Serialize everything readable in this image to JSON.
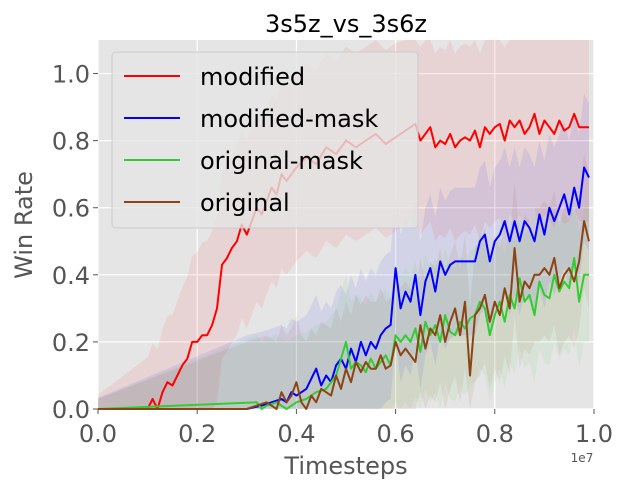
{
  "chart_data": {
    "type": "line",
    "title": "3s5z_vs_3s6z",
    "xlabel": "Timesteps",
    "ylabel": "Win Rate",
    "x_offset_text": "1e7",
    "xlim": [
      0,
      1.0
    ],
    "ylim": [
      0,
      1.1
    ],
    "xticks": [
      "0.0",
      "0.2",
      "0.4",
      "0.6",
      "0.8",
      "1.0"
    ],
    "yticks": [
      "0.0",
      "0.2",
      "0.4",
      "0.6",
      "0.8",
      "1.0"
    ],
    "grid": true,
    "legend_position": "upper-left",
    "series": [
      {
        "name": "modified",
        "color": "#ff0000",
        "x": [
          0.0,
          0.1,
          0.11,
          0.12,
          0.13,
          0.14,
          0.15,
          0.16,
          0.17,
          0.18,
          0.19,
          0.2,
          0.21,
          0.22,
          0.23,
          0.24,
          0.25,
          0.26,
          0.27,
          0.28,
          0.29,
          0.3,
          0.31,
          0.32,
          0.33,
          0.34,
          0.35,
          0.36,
          0.37,
          0.38,
          0.4,
          0.42,
          0.44,
          0.46,
          0.48,
          0.5,
          0.52,
          0.54,
          0.56,
          0.58,
          0.6,
          0.62,
          0.64,
          0.65,
          0.66,
          0.67,
          0.68,
          0.69,
          0.7,
          0.71,
          0.72,
          0.73,
          0.74,
          0.75,
          0.76,
          0.77,
          0.78,
          0.79,
          0.8,
          0.81,
          0.82,
          0.83,
          0.84,
          0.85,
          0.86,
          0.87,
          0.88,
          0.89,
          0.9,
          0.91,
          0.92,
          0.93,
          0.94,
          0.95,
          0.96,
          0.97,
          0.98,
          0.99
        ],
        "y": [
          0.0,
          0.0,
          0.03,
          0.0,
          0.05,
          0.08,
          0.07,
          0.1,
          0.13,
          0.15,
          0.2,
          0.2,
          0.22,
          0.22,
          0.25,
          0.3,
          0.43,
          0.45,
          0.48,
          0.5,
          0.55,
          0.52,
          0.56,
          0.6,
          0.58,
          0.62,
          0.66,
          0.64,
          0.7,
          0.68,
          0.72,
          0.75,
          0.73,
          0.78,
          0.76,
          0.8,
          0.78,
          0.8,
          0.82,
          0.79,
          0.81,
          0.83,
          0.85,
          0.8,
          0.82,
          0.84,
          0.78,
          0.8,
          0.79,
          0.82,
          0.78,
          0.8,
          0.81,
          0.8,
          0.83,
          0.78,
          0.84,
          0.82,
          0.84,
          0.85,
          0.8,
          0.86,
          0.84,
          0.86,
          0.82,
          0.84,
          0.88,
          0.82,
          0.86,
          0.84,
          0.82,
          0.86,
          0.83,
          0.84,
          0.88,
          0.84,
          0.84,
          0.84
        ]
      },
      {
        "name": "modified-mask",
        "color": "#0000ff",
        "x": [
          0.0,
          0.3,
          0.33,
          0.35,
          0.37,
          0.38,
          0.39,
          0.4,
          0.42,
          0.44,
          0.45,
          0.46,
          0.47,
          0.48,
          0.49,
          0.5,
          0.51,
          0.52,
          0.53,
          0.54,
          0.55,
          0.56,
          0.57,
          0.58,
          0.59,
          0.6,
          0.61,
          0.62,
          0.63,
          0.64,
          0.65,
          0.66,
          0.67,
          0.68,
          0.69,
          0.7,
          0.71,
          0.72,
          0.73,
          0.74,
          0.75,
          0.76,
          0.77,
          0.78,
          0.79,
          0.8,
          0.81,
          0.82,
          0.83,
          0.84,
          0.85,
          0.86,
          0.87,
          0.88,
          0.89,
          0.9,
          0.91,
          0.92,
          0.93,
          0.94,
          0.95,
          0.96,
          0.97,
          0.98,
          0.99
        ],
        "y": [
          0.0,
          0.0,
          0.01,
          0.02,
          0.03,
          0.02,
          0.05,
          0.04,
          0.06,
          0.12,
          0.07,
          0.1,
          0.08,
          0.13,
          0.15,
          0.12,
          0.18,
          0.14,
          0.2,
          0.16,
          0.2,
          0.18,
          0.22,
          0.24,
          0.25,
          0.42,
          0.3,
          0.35,
          0.32,
          0.4,
          0.28,
          0.38,
          0.42,
          0.35,
          0.44,
          0.4,
          0.43,
          0.44,
          0.44,
          0.44,
          0.44,
          0.44,
          0.5,
          0.52,
          0.44,
          0.5,
          0.52,
          0.56,
          0.5,
          0.56,
          0.5,
          0.56,
          0.54,
          0.5,
          0.58,
          0.52,
          0.6,
          0.56,
          0.6,
          0.64,
          0.58,
          0.66,
          0.6,
          0.72,
          0.69
        ]
      },
      {
        "name": "original-mask",
        "color": "#32cd32",
        "x": [
          0.0,
          0.32,
          0.33,
          0.34,
          0.36,
          0.38,
          0.4,
          0.42,
          0.44,
          0.46,
          0.48,
          0.5,
          0.51,
          0.52,
          0.53,
          0.54,
          0.55,
          0.56,
          0.57,
          0.58,
          0.59,
          0.6,
          0.61,
          0.62,
          0.63,
          0.64,
          0.65,
          0.66,
          0.67,
          0.68,
          0.69,
          0.7,
          0.71,
          0.72,
          0.73,
          0.74,
          0.75,
          0.76,
          0.77,
          0.78,
          0.79,
          0.8,
          0.81,
          0.82,
          0.83,
          0.84,
          0.85,
          0.86,
          0.87,
          0.88,
          0.89,
          0.9,
          0.91,
          0.92,
          0.93,
          0.94,
          0.95,
          0.96,
          0.97,
          0.98,
          0.99
        ],
        "y": [
          0.0,
          0.02,
          0.0,
          0.01,
          0.02,
          0.0,
          0.02,
          0.03,
          0.05,
          0.06,
          0.1,
          0.2,
          0.12,
          0.14,
          0.13,
          0.11,
          0.15,
          0.12,
          0.14,
          0.16,
          0.13,
          0.22,
          0.2,
          0.22,
          0.2,
          0.24,
          0.17,
          0.26,
          0.22,
          0.25,
          0.2,
          0.28,
          0.23,
          0.22,
          0.26,
          0.24,
          0.27,
          0.28,
          0.32,
          0.3,
          0.22,
          0.28,
          0.32,
          0.26,
          0.34,
          0.3,
          0.39,
          0.32,
          0.34,
          0.28,
          0.38,
          0.34,
          0.33,
          0.4,
          0.35,
          0.38,
          0.36,
          0.45,
          0.32,
          0.4,
          0.4
        ]
      },
      {
        "name": "original",
        "color": "#8b4513",
        "x": [
          0.0,
          0.3,
          0.34,
          0.36,
          0.37,
          0.38,
          0.39,
          0.4,
          0.41,
          0.42,
          0.43,
          0.44,
          0.45,
          0.46,
          0.47,
          0.48,
          0.49,
          0.5,
          0.51,
          0.52,
          0.53,
          0.54,
          0.55,
          0.56,
          0.57,
          0.58,
          0.59,
          0.6,
          0.61,
          0.62,
          0.63,
          0.64,
          0.65,
          0.66,
          0.67,
          0.68,
          0.69,
          0.7,
          0.71,
          0.72,
          0.73,
          0.74,
          0.75,
          0.76,
          0.77,
          0.78,
          0.79,
          0.8,
          0.81,
          0.82,
          0.83,
          0.84,
          0.85,
          0.86,
          0.87,
          0.88,
          0.89,
          0.9,
          0.91,
          0.92,
          0.93,
          0.94,
          0.95,
          0.96,
          0.97,
          0.98,
          0.99
        ],
        "y": [
          0.0,
          0.0,
          0.02,
          0.0,
          0.05,
          0.02,
          0.04,
          0.08,
          0.02,
          0.0,
          0.04,
          0.02,
          0.06,
          0.05,
          0.04,
          0.1,
          0.06,
          0.12,
          0.08,
          0.14,
          0.11,
          0.14,
          0.12,
          0.12,
          0.16,
          0.12,
          0.13,
          0.2,
          0.16,
          0.18,
          0.16,
          0.14,
          0.25,
          0.18,
          0.24,
          0.22,
          0.28,
          0.2,
          0.26,
          0.3,
          0.22,
          0.32,
          0.1,
          0.28,
          0.3,
          0.34,
          0.26,
          0.32,
          0.28,
          0.36,
          0.3,
          0.48,
          0.32,
          0.38,
          0.36,
          0.4,
          0.4,
          0.42,
          0.4,
          0.45,
          0.36,
          0.4,
          0.42,
          0.38,
          0.44,
          0.56,
          0.5
        ]
      }
    ]
  }
}
